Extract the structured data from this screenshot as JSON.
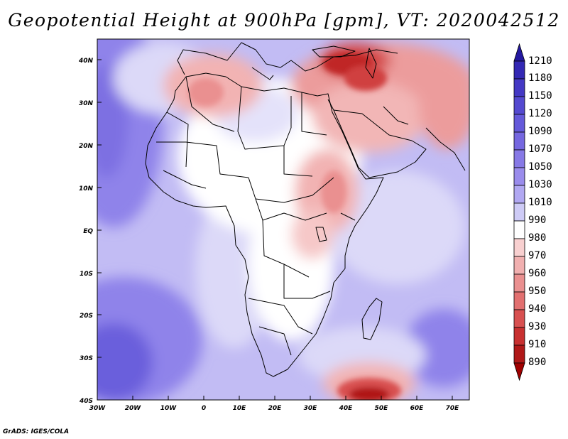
{
  "title": "Geopotential Height at 900hPa [gpm], VT: 2020042512",
  "footer": "GrADS: IGES/COLA",
  "map": {
    "lon_labels": [
      "30W",
      "20W",
      "10W",
      "0",
      "10E",
      "20E",
      "30E",
      "40E",
      "50E",
      "60E",
      "70E"
    ],
    "lat_labels": [
      "40N",
      "30N",
      "20N",
      "10N",
      "EQ",
      "10S",
      "20S",
      "30S",
      "40S"
    ]
  },
  "colorbar": {
    "labels": [
      "1210",
      "1180",
      "1150",
      "1120",
      "1090",
      "1070",
      "1050",
      "1030",
      "1010",
      "990",
      "980",
      "970",
      "960",
      "950",
      "940",
      "930",
      "910",
      "890"
    ],
    "colors": [
      "#2418a0",
      "#3328b4",
      "#4438c4",
      "#5449d0",
      "#6459da",
      "#7567e0",
      "#8779e6",
      "#9a8cec",
      "#b1a8f2",
      "#cecbf6",
      "#ffffff",
      "#f8d0d0",
      "#f1b0b0",
      "#ea9090",
      "#e27070",
      "#d85050",
      "#c83030",
      "#b01818",
      "#a00000"
    ],
    "colors_note": "19 bins from top (above 1210) to bottom (below 890)"
  }
}
